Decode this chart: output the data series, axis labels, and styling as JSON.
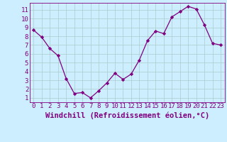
{
  "x": [
    0,
    1,
    2,
    3,
    4,
    5,
    6,
    7,
    8,
    9,
    10,
    11,
    12,
    13,
    14,
    15,
    16,
    17,
    18,
    19,
    20,
    21,
    22,
    23
  ],
  "y": [
    8.7,
    7.9,
    6.6,
    5.8,
    3.2,
    1.5,
    1.6,
    1.0,
    1.8,
    2.7,
    3.8,
    3.1,
    3.7,
    5.3,
    7.5,
    8.6,
    8.3,
    10.2,
    10.8,
    11.4,
    11.1,
    9.3,
    7.2,
    7.0
  ],
  "line_color": "#800080",
  "marker": "D",
  "marker_size": 2.2,
  "bg_color": "#cceeff",
  "grid_color": "#aacccc",
  "xlabel": "Windchill (Refroidissement éolien,°C)",
  "xlim": [
    -0.5,
    23.5
  ],
  "ylim": [
    0.5,
    11.8
  ],
  "yticks": [
    1,
    2,
    3,
    4,
    5,
    6,
    7,
    8,
    9,
    10,
    11
  ],
  "xticks": [
    0,
    1,
    2,
    3,
    4,
    5,
    6,
    7,
    8,
    9,
    10,
    11,
    12,
    13,
    14,
    15,
    16,
    17,
    18,
    19,
    20,
    21,
    22,
    23
  ],
  "xlabel_color": "#800080",
  "tick_color": "#800080",
  "axis_color": "#800080",
  "font_size": 6.5,
  "xlabel_fontsize": 7.5,
  "line_width": 0.9
}
